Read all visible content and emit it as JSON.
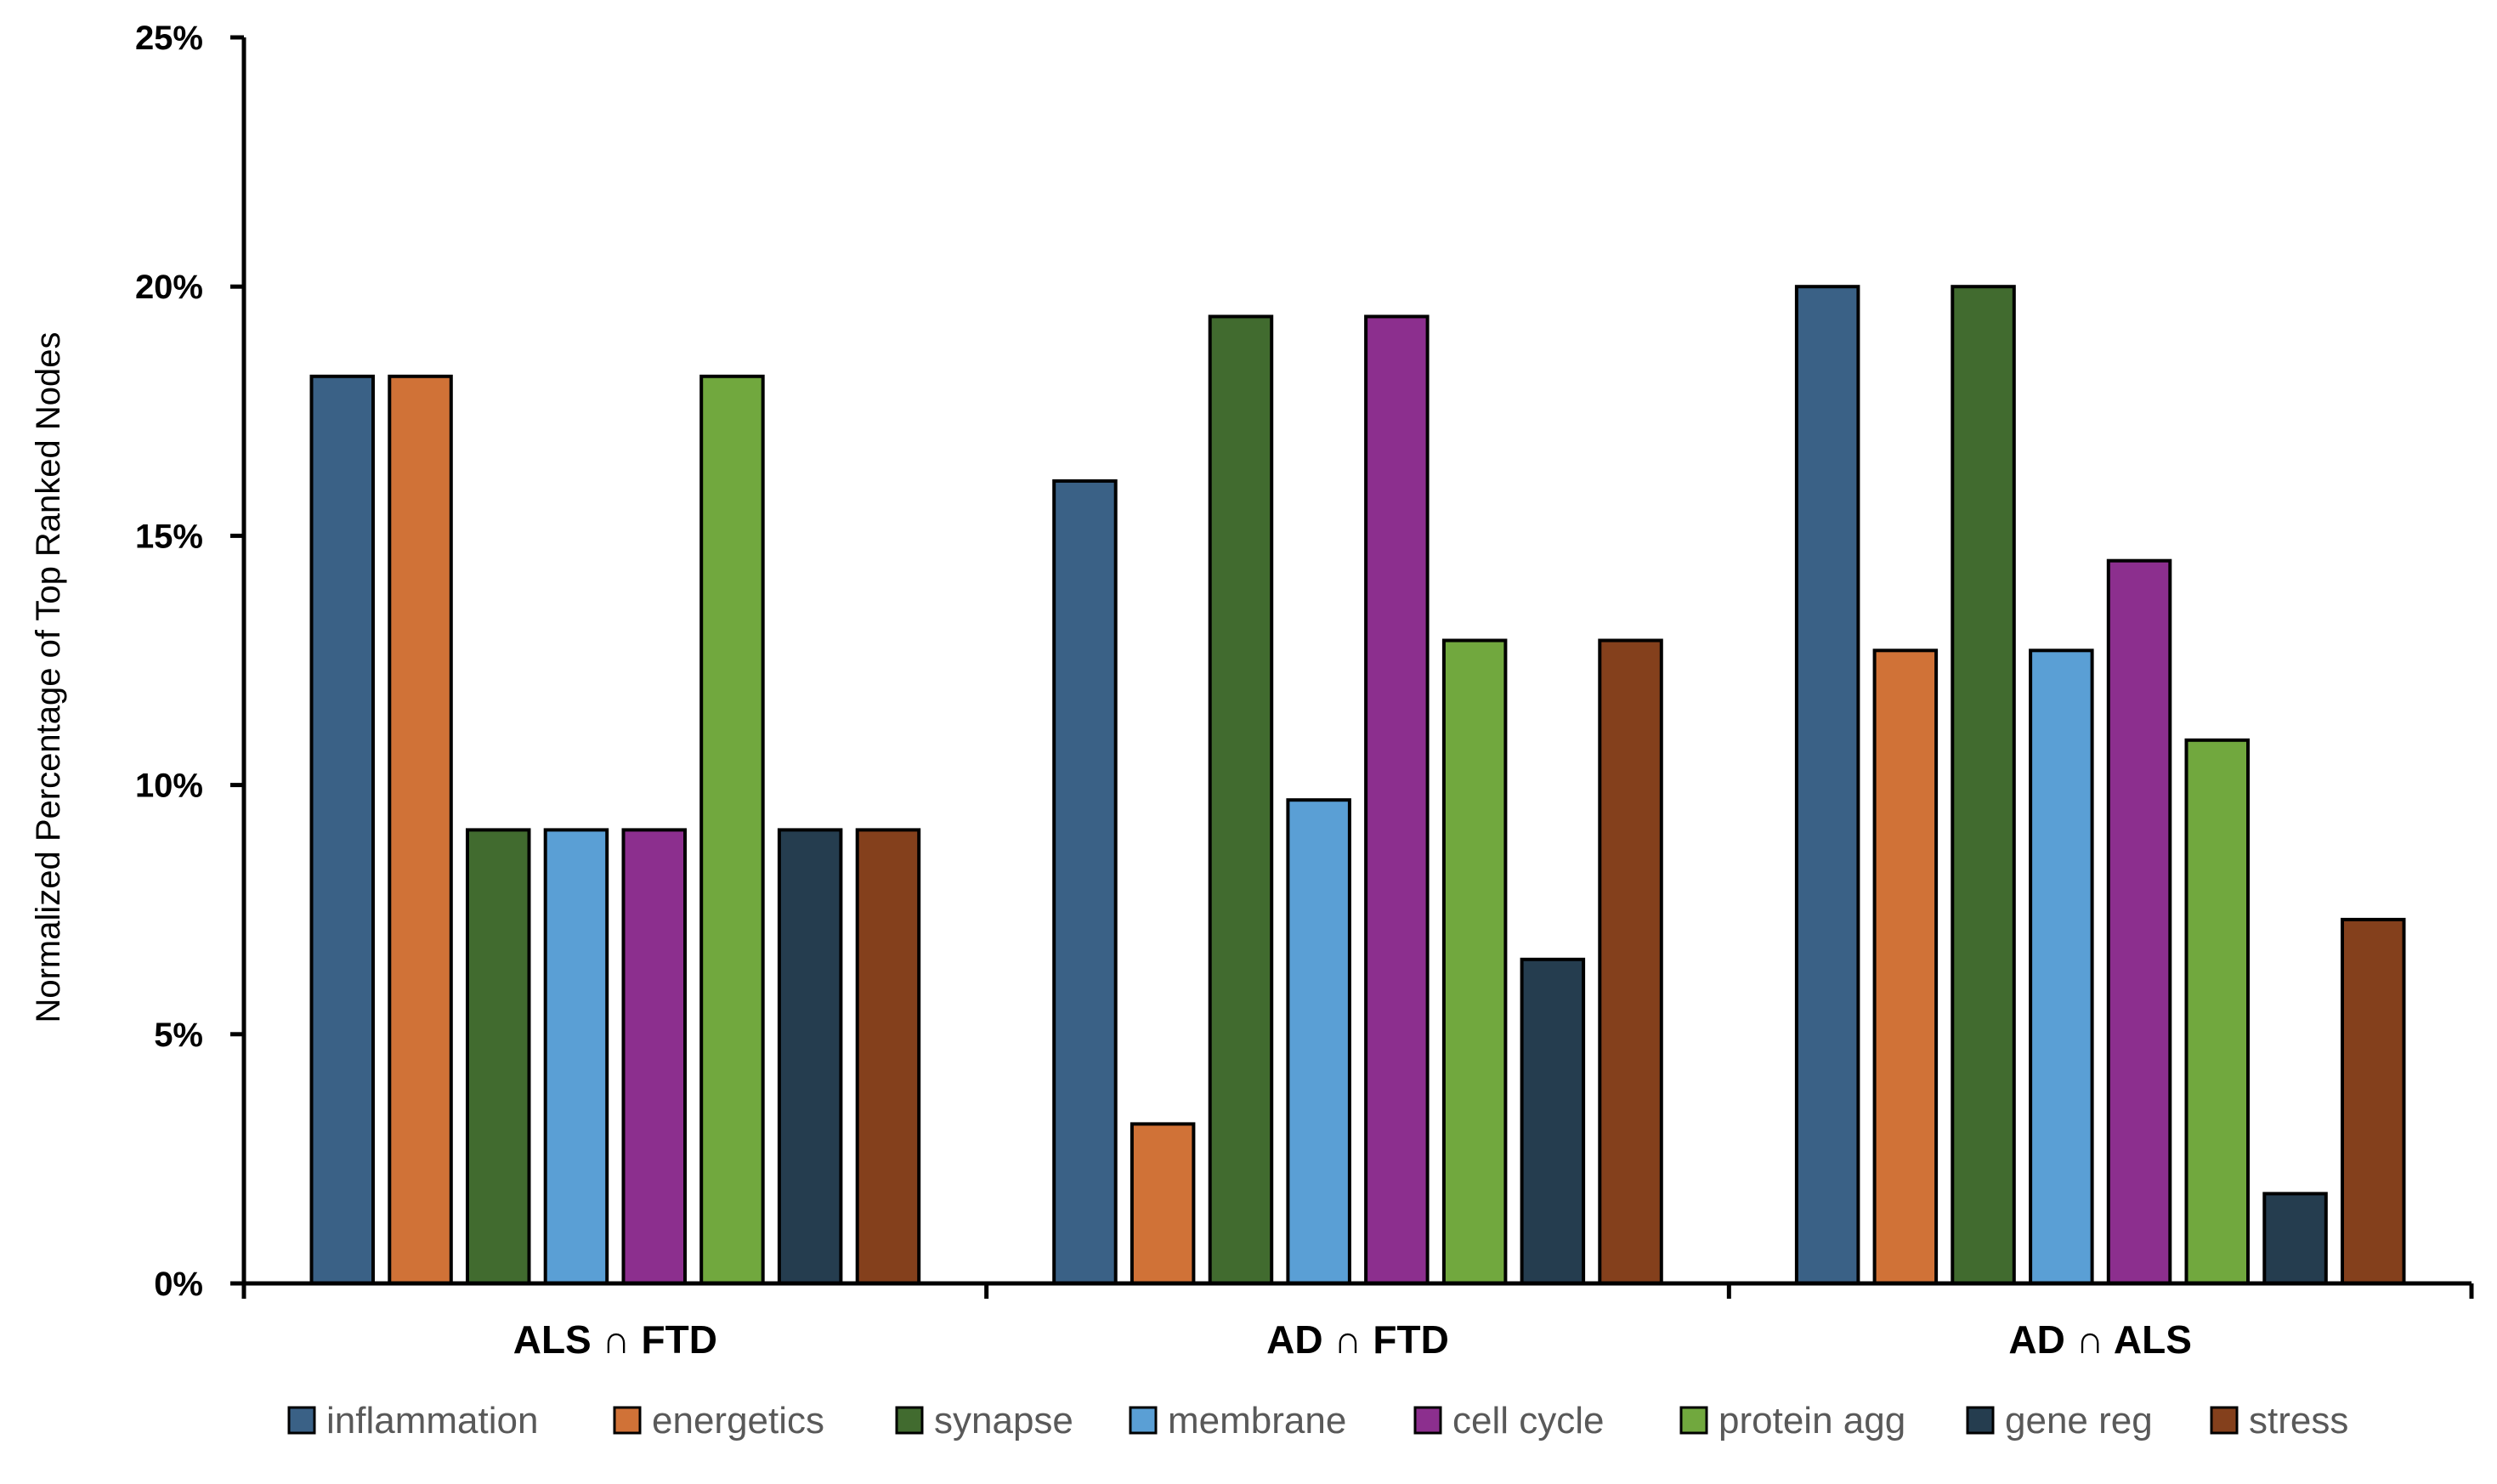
{
  "chart_data": {
    "type": "bar",
    "title": "",
    "xlabel": "",
    "ylabel": "Normalized Percentage of Top  Ranked Nodes",
    "ylim": [
      0,
      25
    ],
    "yticks": [
      0,
      5,
      10,
      15,
      20,
      25
    ],
    "ytick_labels": [
      "0%",
      "5%",
      "10%",
      "15%",
      "20%",
      "25%"
    ],
    "grid": false,
    "legend_position": "bottom",
    "categories": [
      "ALS ∩ FTD",
      "AD ∩ FTD",
      "AD ∩ ALS"
    ],
    "series": [
      {
        "name": "inflammation",
        "color": "#3A6186",
        "values": [
          18.2,
          16.1,
          20.0
        ]
      },
      {
        "name": "energetics",
        "color": "#D07237",
        "values": [
          18.2,
          3.2,
          12.7
        ]
      },
      {
        "name": "synapse",
        "color": "#416B2F",
        "values": [
          9.1,
          19.4,
          20.0
        ]
      },
      {
        "name": "membrane",
        "color": "#5A9FD5",
        "values": [
          9.1,
          9.7,
          12.7
        ]
      },
      {
        "name": "cell cycle",
        "color": "#8C2F8E",
        "values": [
          9.1,
          19.4,
          14.5
        ]
      },
      {
        "name": "protein agg",
        "color": "#71A83E",
        "values": [
          18.2,
          12.9,
          10.9
        ]
      },
      {
        "name": "gene reg",
        "color": "#253D4F",
        "values": [
          9.1,
          6.5,
          1.8
        ]
      },
      {
        "name": "stress",
        "color": "#84401C",
        "values": [
          9.1,
          12.9,
          7.3
        ]
      }
    ]
  }
}
